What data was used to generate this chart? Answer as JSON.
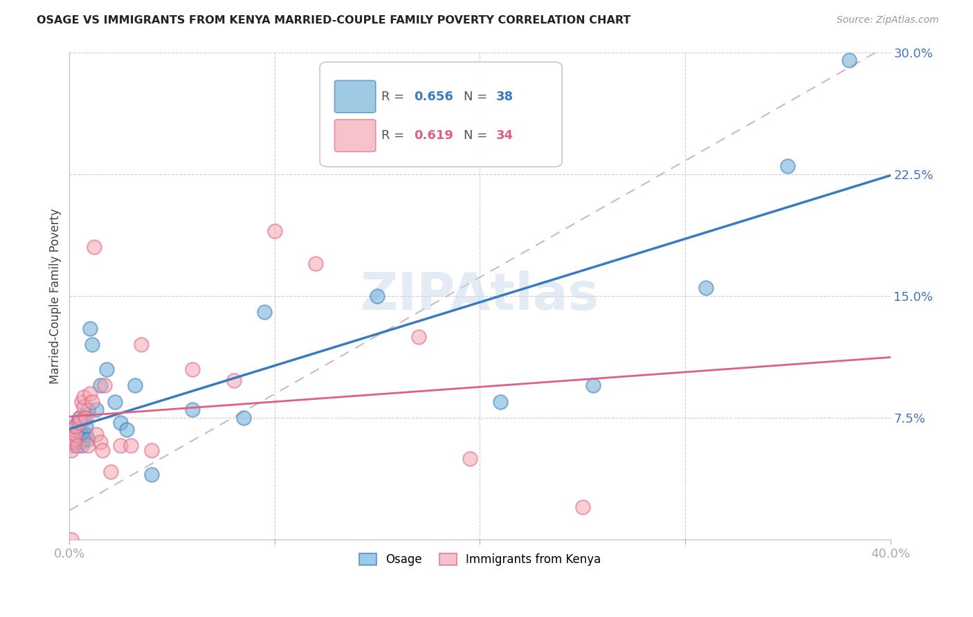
{
  "title": "OSAGE VS IMMIGRANTS FROM KENYA MARRIED-COUPLE FAMILY POVERTY CORRELATION CHART",
  "source": "Source: ZipAtlas.com",
  "ylabel": "Married-Couple Family Poverty",
  "xlim": [
    0.0,
    0.4
  ],
  "ylim": [
    0.0,
    0.3
  ],
  "legend_R1": "0.656",
  "legend_N1": "38",
  "legend_R2": "0.619",
  "legend_N2": "34",
  "color_blue": "#6baed6",
  "color_pink": "#f4a4b0",
  "color_line_blue": "#3a7abf",
  "color_line_pink": "#e06080",
  "color_tick_label": "#4472C4",
  "osage_x": [
    0.001,
    0.002,
    0.002,
    0.003,
    0.003,
    0.003,
    0.004,
    0.004,
    0.005,
    0.005,
    0.005,
    0.006,
    0.006,
    0.007,
    0.007,
    0.008,
    0.008,
    0.009,
    0.009,
    0.01,
    0.011,
    0.013,
    0.015,
    0.018,
    0.022,
    0.025,
    0.028,
    0.032,
    0.04,
    0.06,
    0.085,
    0.095,
    0.15,
    0.21,
    0.255,
    0.31,
    0.35,
    0.38
  ],
  "osage_y": [
    0.062,
    0.058,
    0.065,
    0.06,
    0.065,
    0.07,
    0.068,
    0.072,
    0.075,
    0.06,
    0.063,
    0.058,
    0.065,
    0.062,
    0.075,
    0.065,
    0.07,
    0.08,
    0.062,
    0.13,
    0.12,
    0.08,
    0.095,
    0.105,
    0.085,
    0.072,
    0.068,
    0.095,
    0.04,
    0.08,
    0.075,
    0.14,
    0.15,
    0.085,
    0.095,
    0.155,
    0.23,
    0.295
  ],
  "kenya_x": [
    0.001,
    0.001,
    0.002,
    0.002,
    0.003,
    0.003,
    0.004,
    0.005,
    0.005,
    0.006,
    0.007,
    0.007,
    0.008,
    0.009,
    0.01,
    0.011,
    0.012,
    0.013,
    0.015,
    0.016,
    0.017,
    0.02,
    0.025,
    0.03,
    0.035,
    0.04,
    0.06,
    0.08,
    0.1,
    0.12,
    0.17,
    0.195,
    0.25,
    0.001
  ],
  "kenya_y": [
    0.055,
    0.06,
    0.062,
    0.068,
    0.065,
    0.07,
    0.058,
    0.072,
    0.075,
    0.085,
    0.082,
    0.088,
    0.075,
    0.058,
    0.09,
    0.085,
    0.18,
    0.065,
    0.06,
    0.055,
    0.095,
    0.042,
    0.058,
    0.058,
    0.12,
    0.055,
    0.105,
    0.098,
    0.19,
    0.17,
    0.125,
    0.05,
    0.02,
    0.0
  ]
}
